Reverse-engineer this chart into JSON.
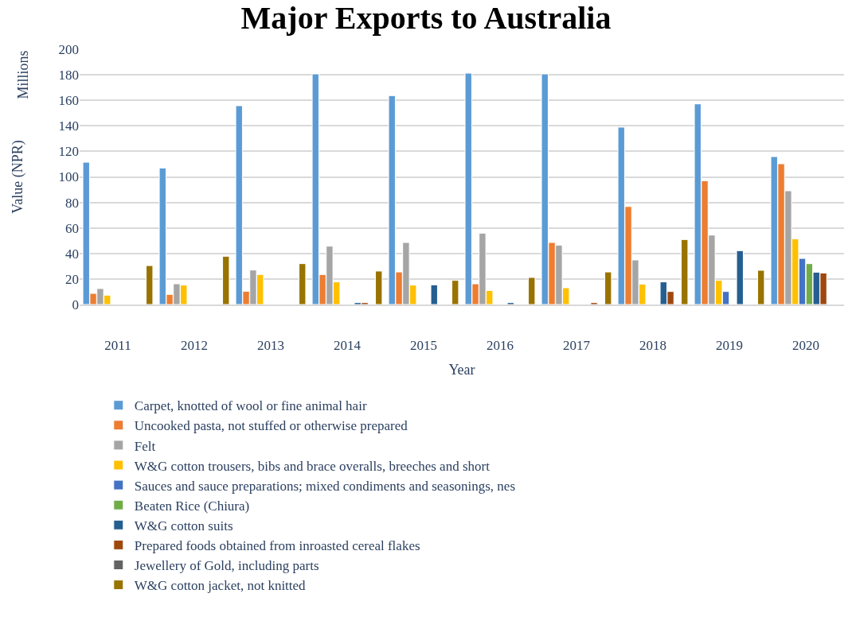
{
  "chart_data": {
    "type": "bar",
    "title": "Major Exports to Australia",
    "xlabel": "Year",
    "ylabel": "Value (NPR)",
    "annotations": [
      "Millions"
    ],
    "categories": [
      "2011",
      "2012",
      "2013",
      "2014",
      "2015",
      "2016",
      "2017",
      "2018",
      "2019",
      "2020"
    ],
    "ylim": [
      0,
      200
    ],
    "yticks": [
      0,
      20,
      40,
      60,
      80,
      100,
      120,
      140,
      160,
      180,
      200
    ],
    "grid": "y",
    "legend": "bottom",
    "series": [
      {
        "name": "Carpet, knotted of wool or fine animal hair",
        "color": "#5b9bd5",
        "values": [
          111.5,
          107,
          155.8,
          180.7,
          163.7,
          181.3,
          180.7,
          139,
          157.2,
          115.9
        ]
      },
      {
        "name": "Uncooked pasta, not stuffed or otherwise prepared",
        "color": "#ed7d31",
        "values": [
          8.7,
          7.9,
          10.4,
          23.5,
          25.5,
          16.2,
          48.6,
          76.8,
          97,
          110.3
        ]
      },
      {
        "name": "Felt",
        "color": "#a5a5a5",
        "values": [
          12.5,
          16.2,
          27,
          45.7,
          48.6,
          55.9,
          46.5,
          34.9,
          54.4,
          89.1
        ]
      },
      {
        "name": "W&G cotton trousers, bibs and brace overalls, breeches and short",
        "color": "#ffc000",
        "values": [
          7.3,
          15.2,
          23.5,
          17.7,
          15.2,
          11,
          13.1,
          16,
          18.9,
          51.5
        ]
      },
      {
        "name": "Sauces and sauce preparations; mixed condiments and seasonings, nes",
        "color": "#4472c4",
        "values": [
          null,
          null,
          null,
          null,
          null,
          null,
          null,
          null,
          10.2,
          36.1
        ]
      },
      {
        "name": "Beaten Rice (Chiura)",
        "color": "#70ad47",
        "values": [
          null,
          null,
          null,
          null,
          null,
          null,
          null,
          null,
          null,
          32
        ]
      },
      {
        "name": "W&G cotton suits",
        "color": "#255e91",
        "values": [
          null,
          null,
          null,
          1.5,
          15.4,
          1.5,
          null,
          17.7,
          42.2,
          25.3
        ]
      },
      {
        "name": "Prepared foods obtained from inroasted cereal flakes",
        "color": "#9e480e",
        "values": [
          null,
          null,
          null,
          1.5,
          null,
          null,
          1.5,
          10.2,
          null,
          24.7
        ]
      },
      {
        "name": "Jewellery of Gold, including parts",
        "color": "#636363",
        "values": [
          null,
          null,
          null,
          null,
          null,
          null,
          null,
          null,
          null,
          null
        ]
      },
      {
        "name": "W&G cotton jacket, not knitted",
        "color": "#997300",
        "values": [
          30.5,
          37.8,
          32,
          26.2,
          18.9,
          21.2,
          25.5,
          50.9,
          26.8,
          null
        ]
      }
    ]
  }
}
